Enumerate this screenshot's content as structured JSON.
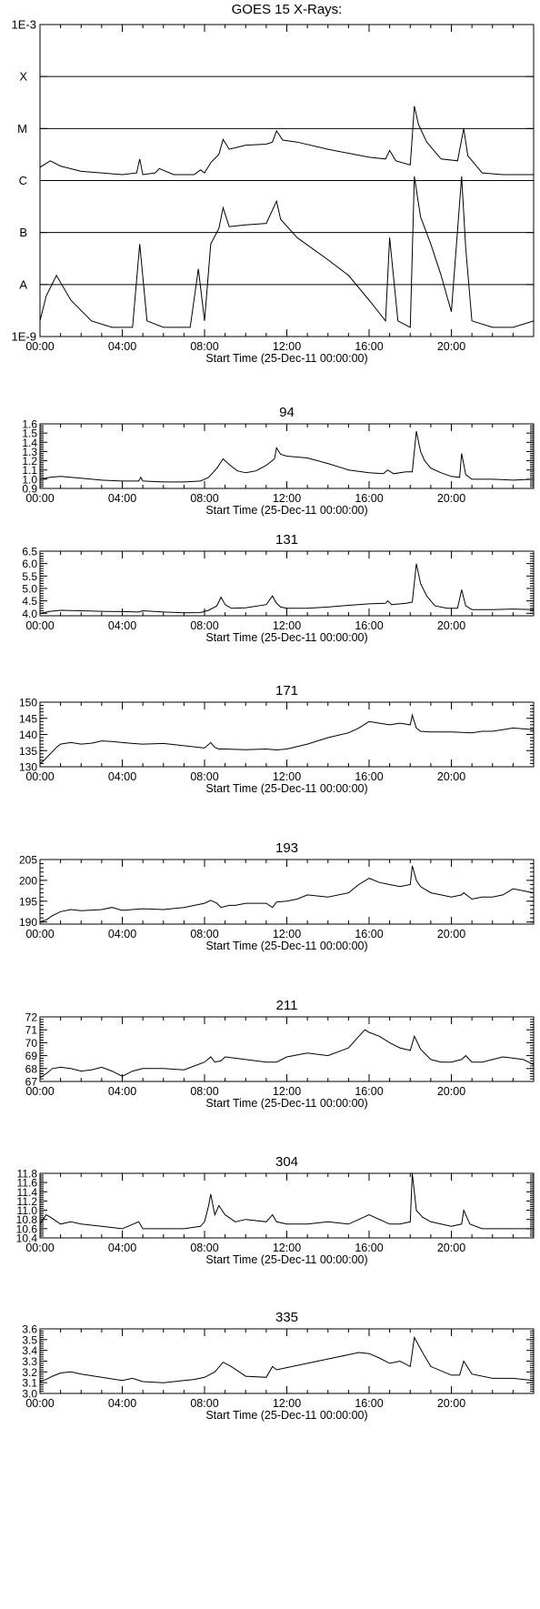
{
  "chart_data": [
    {
      "type": "line",
      "title": "GOES 15 X-Rays:",
      "xlabel": "Start Time (25-Dec-11 00:00:00)",
      "x_unit": "hours",
      "xlim": [
        0,
        24
      ],
      "x_tick_labels": [
        "00:00",
        "04:00",
        "08:00",
        "12:00",
        "16:00",
        "20:00"
      ],
      "x_tick_values": [
        0,
        4,
        8,
        12,
        16,
        20
      ],
      "yscale": "log",
      "ylim": [
        1e-09,
        0.001
      ],
      "y_tick_labels": [
        {
          "label": "1E-3",
          "value": 0.001
        },
        {
          "label": "X",
          "value": 0.0001
        },
        {
          "label": "M",
          "value": 1e-05
        },
        {
          "label": "C",
          "value": 1e-06
        },
        {
          "label": "B",
          "value": 1e-07
        },
        {
          "label": "A",
          "value": 1e-08
        },
        {
          "label": "1E-9",
          "value": 1e-09
        }
      ],
      "class_lines": [
        0.0001,
        1e-05,
        1e-06,
        1e-07,
        1e-08
      ],
      "series": [
        {
          "x": [
            0,
            0.5,
            1,
            2,
            3,
            4,
            4.7,
            4.85,
            5,
            5.6,
            5.8,
            6.5,
            7.5,
            7.8,
            8,
            8.3,
            8.7,
            8.9,
            9.2,
            10,
            11,
            11.3,
            11.5,
            11.8,
            12.5,
            14,
            16,
            16.8,
            17,
            17.3,
            18,
            18.2,
            18.4,
            18.8,
            19.5,
            20.3,
            20.6,
            20.8,
            21.5,
            22.5,
            24
          ],
          "y": [
            1.8e-06,
            2.4e-06,
            1.9e-06,
            1.5e-06,
            1.4e-06,
            1.3e-06,
            1.4e-06,
            2.6e-06,
            1.3e-06,
            1.4e-06,
            1.7e-06,
            1.3e-06,
            1.3e-06,
            1.6e-06,
            1.4e-06,
            2.2e-06,
            3.2e-06,
            6.2e-06,
            4e-06,
            4.8e-06,
            5e-06,
            5.5e-06,
            9e-06,
            6e-06,
            5.5e-06,
            4e-06,
            2.8e-06,
            2.6e-06,
            3.8e-06,
            2.4e-06,
            2e-06,
            2.7e-05,
            1.2e-05,
            5.5e-06,
            2.6e-06,
            2.4e-06,
            1e-05,
            3e-06,
            1.4e-06,
            1.3e-06,
            1.3e-06
          ]
        },
        {
          "x": [
            0,
            0.3,
            0.8,
            1.5,
            2.5,
            3.5,
            4.5,
            4.85,
            5.2,
            6,
            7.3,
            7.7,
            8,
            8.3,
            8.7,
            8.9,
            9.2,
            10,
            11,
            11.5,
            11.7,
            12.5,
            14,
            15,
            16,
            16.8,
            17,
            17.4,
            18,
            18.2,
            18.5,
            19,
            19.5,
            20,
            20.5,
            20.7,
            21,
            22,
            23,
            24
          ],
          "y": [
            2e-09,
            6e-09,
            1.5e-08,
            5e-09,
            2e-09,
            1.5e-09,
            1.5e-09,
            6e-08,
            2e-09,
            1.5e-09,
            1.5e-09,
            2e-08,
            2e-09,
            6e-08,
            1.2e-07,
            3e-07,
            1.3e-07,
            1.4e-07,
            1.5e-07,
            4e-07,
            1.8e-07,
            8e-08,
            3e-08,
            1.5e-08,
            5e-09,
            2e-09,
            8e-08,
            2e-09,
            1.5e-09,
            1.2e-06,
            2e-07,
            6e-08,
            1.5e-08,
            3e-09,
            1.2e-06,
            5e-08,
            2e-09,
            1.5e-09,
            1.5e-09,
            2e-09
          ]
        }
      ]
    },
    {
      "type": "line",
      "title": "94",
      "xlabel": "Start Time (25-Dec-11 00:00:00)",
      "xlim": [
        0,
        24
      ],
      "x_tick_labels": [
        "00:00",
        "04:00",
        "08:00",
        "12:00",
        "16:00",
        "20:00"
      ],
      "ylim": [
        0.9,
        1.6
      ],
      "y_tick_labels": [
        "0.9",
        "1.0",
        "1.1",
        "1.2",
        "1.3",
        "1.4",
        "1.5",
        "1.6"
      ],
      "series": [
        {
          "x": [
            0,
            0.5,
            1,
            2,
            3,
            4,
            4.8,
            4.9,
            5,
            6,
            7,
            7.8,
            8.2,
            8.6,
            8.9,
            9.2,
            9.6,
            10,
            10.5,
            11,
            11.4,
            11.5,
            11.7,
            12,
            12.5,
            13,
            14,
            15,
            16,
            16.7,
            16.9,
            17.2,
            17.8,
            18.1,
            18.3,
            18.5,
            18.7,
            19,
            19.5,
            20,
            20.4,
            20.5,
            20.7,
            21,
            22,
            23,
            24
          ],
          "y": [
            1.0,
            1.02,
            1.03,
            1.01,
            0.99,
            0.98,
            0.98,
            1.02,
            0.98,
            0.97,
            0.97,
            0.98,
            1.02,
            1.12,
            1.22,
            1.16,
            1.09,
            1.07,
            1.09,
            1.15,
            1.22,
            1.34,
            1.27,
            1.25,
            1.24,
            1.23,
            1.17,
            1.1,
            1.07,
            1.06,
            1.1,
            1.06,
            1.08,
            1.08,
            1.52,
            1.3,
            1.2,
            1.12,
            1.07,
            1.03,
            1.02,
            1.28,
            1.05,
            1.0,
            1.0,
            0.99,
            1.0
          ]
        }
      ]
    },
    {
      "type": "line",
      "title": "131",
      "xlabel": "Start Time (25-Dec-11 00:00:00)",
      "xlim": [
        0,
        24
      ],
      "x_tick_labels": [
        "00:00",
        "04:00",
        "08:00",
        "12:00",
        "16:00",
        "20:00"
      ],
      "ylim": [
        3.9,
        6.5
      ],
      "y_tick_labels": [
        "4.0",
        "4.5",
        "5.0",
        "5.5",
        "6.0",
        "6.5"
      ],
      "series": [
        {
          "x": [
            0,
            0.5,
            1,
            2,
            3,
            4,
            4.8,
            5,
            6,
            7,
            7.8,
            8.2,
            8.6,
            8.8,
            9,
            9.3,
            10,
            11,
            11.3,
            11.5,
            11.7,
            12,
            13,
            14,
            15,
            16,
            16.8,
            16.9,
            17.1,
            17.8,
            18.1,
            18.3,
            18.5,
            18.8,
            19.2,
            19.8,
            20.3,
            20.5,
            20.7,
            21,
            22,
            23,
            24
          ],
          "y": [
            4.0,
            4.08,
            4.12,
            4.1,
            4.08,
            4.07,
            4.05,
            4.1,
            4.05,
            4.02,
            4.03,
            4.12,
            4.3,
            4.65,
            4.35,
            4.2,
            4.22,
            4.35,
            4.7,
            4.4,
            4.25,
            4.2,
            4.2,
            4.25,
            4.32,
            4.38,
            4.4,
            4.5,
            4.35,
            4.4,
            4.45,
            6.0,
            5.2,
            4.7,
            4.3,
            4.2,
            4.2,
            4.95,
            4.3,
            4.15,
            4.15,
            4.17,
            4.15
          ]
        }
      ]
    },
    {
      "type": "line",
      "title": "171",
      "xlabel": "Start Time (25-Dec-11 00:00:00)",
      "xlim": [
        0,
        24
      ],
      "x_tick_labels": [
        "00:00",
        "04:00",
        "08:00",
        "12:00",
        "16:00",
        "20:00"
      ],
      "ylim": [
        130,
        150
      ],
      "y_tick_labels": [
        "130",
        "135",
        "140",
        "145",
        "150"
      ],
      "series": [
        {
          "x": [
            0,
            0.2,
            0.5,
            0.8,
            1,
            1.5,
            2,
            2.5,
            3,
            3.5,
            4,
            4.5,
            5,
            6,
            7,
            8,
            8.3,
            8.5,
            8.7,
            9,
            10,
            11,
            11.5,
            12,
            13,
            14,
            15,
            15.5,
            16,
            16.5,
            17,
            17.5,
            18,
            18.1,
            18.3,
            18.5,
            19,
            20,
            21,
            21.5,
            22,
            22.5,
            23,
            24
          ],
          "y": [
            131,
            132,
            134,
            136,
            137,
            137.5,
            137,
            137.3,
            138,
            137.8,
            137.5,
            137.2,
            137,
            137.2,
            136.5,
            135.8,
            137.5,
            136,
            135.5,
            135.5,
            135.3,
            135.5,
            135.2,
            135.5,
            137,
            139,
            140.5,
            142,
            144,
            143.5,
            143,
            143.5,
            143,
            146,
            142,
            141,
            140.8,
            140.8,
            140.5,
            141,
            141,
            141.5,
            142,
            141.5
          ]
        }
      ]
    },
    {
      "type": "line",
      "title": "193",
      "xlabel": "Start Time (25-Dec-11 00:00:00)",
      "xlim": [
        0,
        24
      ],
      "x_tick_labels": [
        "00:00",
        "04:00",
        "08:00",
        "12:00",
        "16:00",
        "20:00"
      ],
      "ylim": [
        189.5,
        205
      ],
      "y_tick_labels": [
        "190",
        "195",
        "200",
        "205"
      ],
      "series": [
        {
          "x": [
            0,
            0.3,
            0.6,
            1,
            1.5,
            2,
            3,
            3.5,
            4,
            5,
            6,
            7,
            7.5,
            8,
            8.3,
            8.6,
            8.8,
            9.2,
            9.5,
            10,
            11,
            11.3,
            11.5,
            12,
            12.5,
            13,
            14,
            15,
            15.5,
            16,
            16.5,
            17,
            17.5,
            18,
            18.1,
            18.3,
            18.5,
            19,
            19.5,
            20,
            20.5,
            20.6,
            21,
            21.5,
            22,
            22.5,
            23,
            23.5,
            24
          ],
          "y": [
            190,
            190.5,
            191.5,
            192.5,
            193,
            192.7,
            193,
            193.5,
            192.8,
            193.2,
            193,
            193.5,
            194,
            194.5,
            195.2,
            194.5,
            193.5,
            194,
            194,
            194.5,
            194.5,
            193.5,
            194.8,
            195,
            195.5,
            196.5,
            196,
            197,
            199,
            200.5,
            199.5,
            199,
            198.5,
            199,
            203.5,
            200,
            198.5,
            197,
            196.5,
            196,
            196.5,
            197,
            195.5,
            196,
            196,
            196.5,
            198,
            197.5,
            197
          ]
        }
      ]
    },
    {
      "type": "line",
      "title": "211",
      "xlabel": "Start Time (25-Dec-11 00:00:00)",
      "xlim": [
        0,
        24
      ],
      "x_tick_labels": [
        "00:00",
        "04:00",
        "08:00",
        "12:00",
        "16:00",
        "20:00"
      ],
      "ylim": [
        67,
        72
      ],
      "y_tick_labels": [
        "67",
        "68",
        "69",
        "70",
        "71",
        "72"
      ],
      "series": [
        {
          "x": [
            0,
            0.3,
            0.6,
            1,
            1.5,
            2,
            2.5,
            3,
            3.5,
            4,
            4.5,
            5,
            6,
            7,
            7.5,
            8,
            8.3,
            8.5,
            8.8,
            9,
            9.5,
            10,
            11,
            11.5,
            12,
            13,
            14,
            15,
            15.5,
            15.8,
            16,
            16.5,
            17,
            17.5,
            18,
            18.2,
            18.5,
            19,
            19.5,
            20,
            20.5,
            20.7,
            21,
            21.5,
            22,
            22.5,
            23,
            23.5,
            24
          ],
          "y": [
            67.3,
            67.6,
            68.0,
            68.1,
            68.0,
            67.8,
            67.9,
            68.1,
            67.8,
            67.4,
            67.8,
            68.0,
            68.0,
            67.9,
            68.2,
            68.5,
            68.9,
            68.5,
            68.6,
            68.9,
            68.8,
            68.7,
            68.5,
            68.5,
            68.9,
            69.2,
            69.0,
            69.6,
            70.5,
            71.0,
            70.8,
            70.5,
            70.0,
            69.6,
            69.4,
            70.5,
            69.5,
            68.7,
            68.5,
            68.5,
            68.7,
            69.0,
            68.5,
            68.5,
            68.7,
            68.9,
            68.8,
            68.7,
            68.3
          ]
        }
      ]
    },
    {
      "type": "line",
      "title": "304",
      "xlabel": "Start Time (25-Dec-11 00:00:00)",
      "xlim": [
        0,
        24
      ],
      "x_tick_labels": [
        "00:00",
        "04:00",
        "08:00",
        "12:00",
        "16:00",
        "20:00"
      ],
      "ylim": [
        10.4,
        11.8
      ],
      "y_tick_labels": [
        "10.4",
        "10.6",
        "10.8",
        "11.0",
        "11.2",
        "11.4",
        "11.6",
        "11.8"
      ],
      "series": [
        {
          "x": [
            0,
            0.3,
            0.5,
            1,
            1.5,
            2,
            3,
            4,
            4.8,
            5,
            6,
            7,
            7.8,
            8,
            8.2,
            8.3,
            8.5,
            8.7,
            9,
            9.5,
            10,
            11,
            11.3,
            11.5,
            12,
            13,
            14,
            15,
            16,
            16.5,
            17,
            17.5,
            18,
            18.1,
            18.3,
            18.6,
            19,
            19.5,
            20,
            20.5,
            20.6,
            20.9,
            21.5,
            22,
            23,
            24
          ],
          "y": [
            10.7,
            10.9,
            10.85,
            10.7,
            10.75,
            10.7,
            10.65,
            10.6,
            10.75,
            10.6,
            10.6,
            10.6,
            10.65,
            10.75,
            11.1,
            11.35,
            10.9,
            11.1,
            10.9,
            10.75,
            10.8,
            10.75,
            10.9,
            10.75,
            10.7,
            10.7,
            10.75,
            10.7,
            10.9,
            10.8,
            10.7,
            10.7,
            10.75,
            11.8,
            11.0,
            10.85,
            10.75,
            10.7,
            10.65,
            10.7,
            11.0,
            10.7,
            10.6,
            10.6,
            10.6,
            10.6
          ]
        }
      ]
    },
    {
      "type": "line",
      "title": "335",
      "xlabel": "Start Time (25-Dec-11 00:00:00)",
      "xlim": [
        0,
        24
      ],
      "x_tick_labels": [
        "00:00",
        "04:00",
        "08:00",
        "12:00",
        "16:00",
        "20:00"
      ],
      "ylim": [
        3.0,
        3.6
      ],
      "y_tick_labels": [
        "3.0",
        "3.1",
        "3.2",
        "3.3",
        "3.4",
        "3.5",
        "3.6"
      ],
      "series": [
        {
          "x": [
            0,
            0.3,
            0.6,
            1,
            1.5,
            2,
            3,
            4,
            4.5,
            5,
            6,
            7,
            7.5,
            8,
            8.5,
            8.9,
            9.3,
            10,
            11,
            11.3,
            11.5,
            12,
            13,
            14,
            15,
            15.5,
            16,
            16.5,
            17,
            17.5,
            18,
            18.2,
            18.6,
            19,
            20,
            20.4,
            20.6,
            21,
            22,
            23,
            24
          ],
          "y": [
            3.11,
            3.13,
            3.16,
            3.19,
            3.2,
            3.18,
            3.15,
            3.12,
            3.14,
            3.11,
            3.1,
            3.12,
            3.13,
            3.15,
            3.2,
            3.29,
            3.25,
            3.16,
            3.15,
            3.25,
            3.22,
            3.24,
            3.28,
            3.32,
            3.36,
            3.38,
            3.37,
            3.33,
            3.28,
            3.3,
            3.25,
            3.52,
            3.38,
            3.25,
            3.17,
            3.17,
            3.3,
            3.18,
            3.14,
            3.14,
            3.12
          ]
        }
      ]
    }
  ]
}
